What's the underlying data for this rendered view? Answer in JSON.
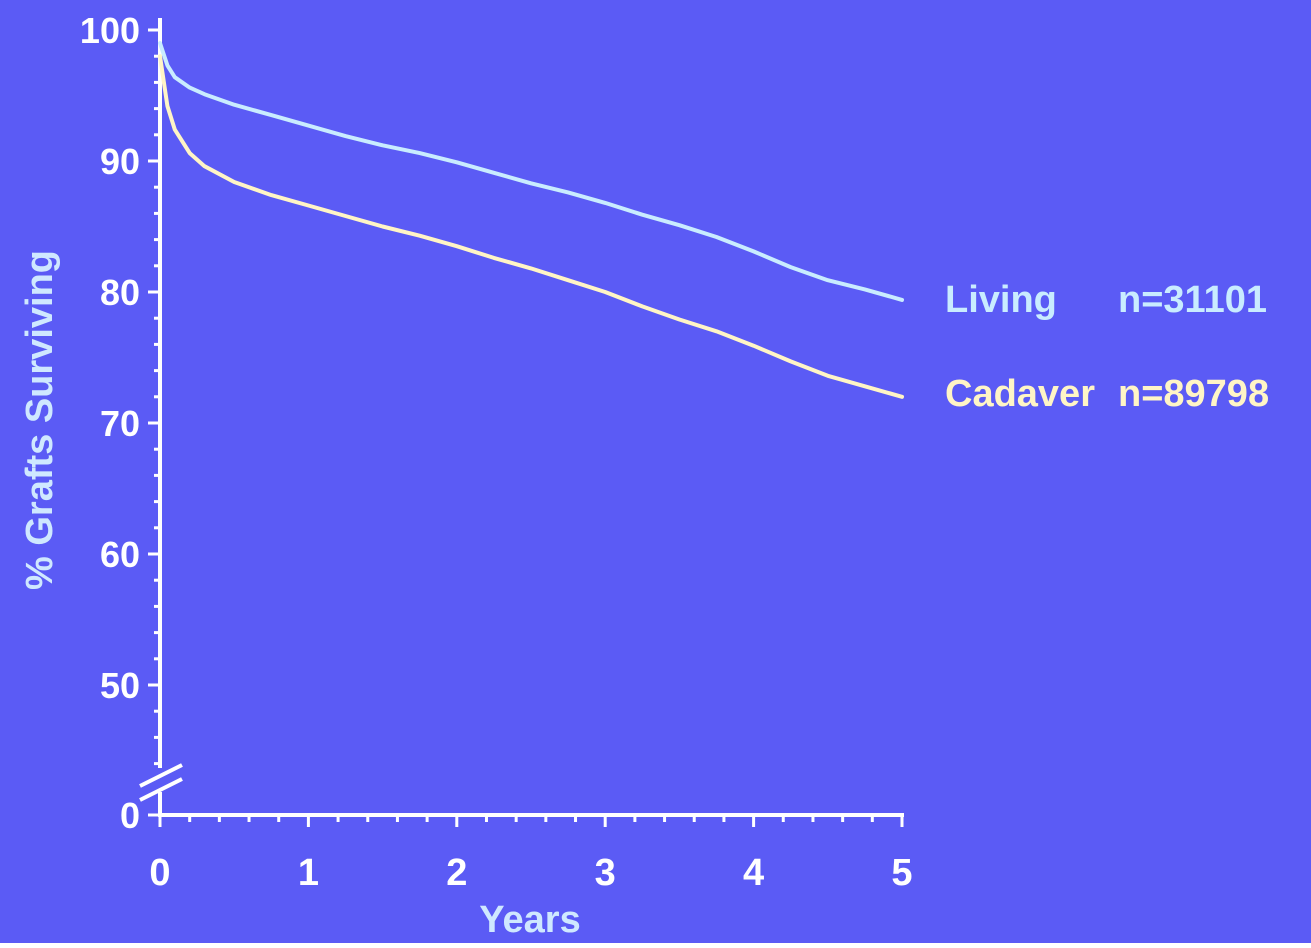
{
  "colors": {
    "background": "#5b5bf5",
    "axis": "#ffffff",
    "tick_label": "#ffffff",
    "axis_title": "#cfe8ff"
  },
  "chart_data": {
    "type": "line",
    "xlabel": "Years",
    "ylabel": "% Grafts Surviving",
    "xlim": [
      0,
      5
    ],
    "ylim": [
      0,
      100
    ],
    "axis_break": "between 0 and 40 on y-axis",
    "x_ticks": [
      "0",
      "1",
      "2",
      "3",
      "4",
      "5"
    ],
    "y_ticks": [
      "100",
      "90",
      "80",
      "70",
      "60",
      "50",
      "0"
    ],
    "grid": false,
    "legend": "inline at right end of lines",
    "series": [
      {
        "name": "Living",
        "n_label": "n=31101",
        "color": "#c9ecff",
        "x": [
          0,
          0.05,
          0.1,
          0.2,
          0.3,
          0.5,
          0.75,
          1.0,
          1.25,
          1.5,
          1.75,
          2.0,
          2.25,
          2.5,
          2.75,
          3.0,
          3.25,
          3.5,
          3.75,
          4.0,
          4.25,
          4.5,
          4.75,
          5.0
        ],
        "y": [
          99.0,
          97.3,
          96.4,
          95.6,
          95.1,
          94.3,
          93.5,
          92.7,
          91.9,
          91.2,
          90.6,
          89.9,
          89.1,
          88.3,
          87.6,
          86.8,
          85.9,
          85.1,
          84.2,
          83.1,
          81.9,
          80.9,
          80.2,
          79.4
        ]
      },
      {
        "name": "Cadaver",
        "n_label": "n=89798",
        "color": "#fff5c6",
        "x": [
          0,
          0.05,
          0.1,
          0.2,
          0.3,
          0.5,
          0.75,
          1.0,
          1.25,
          1.5,
          1.75,
          2.0,
          2.25,
          2.5,
          2.75,
          3.0,
          3.25,
          3.5,
          3.75,
          4.0,
          4.25,
          4.5,
          4.75,
          5.0
        ],
        "y": [
          98.0,
          94.2,
          92.4,
          90.6,
          89.6,
          88.4,
          87.4,
          86.6,
          85.8,
          85.0,
          84.3,
          83.5,
          82.6,
          81.8,
          80.9,
          80.0,
          78.9,
          77.9,
          77.0,
          75.9,
          74.7,
          73.6,
          72.8,
          72.0
        ]
      }
    ]
  }
}
